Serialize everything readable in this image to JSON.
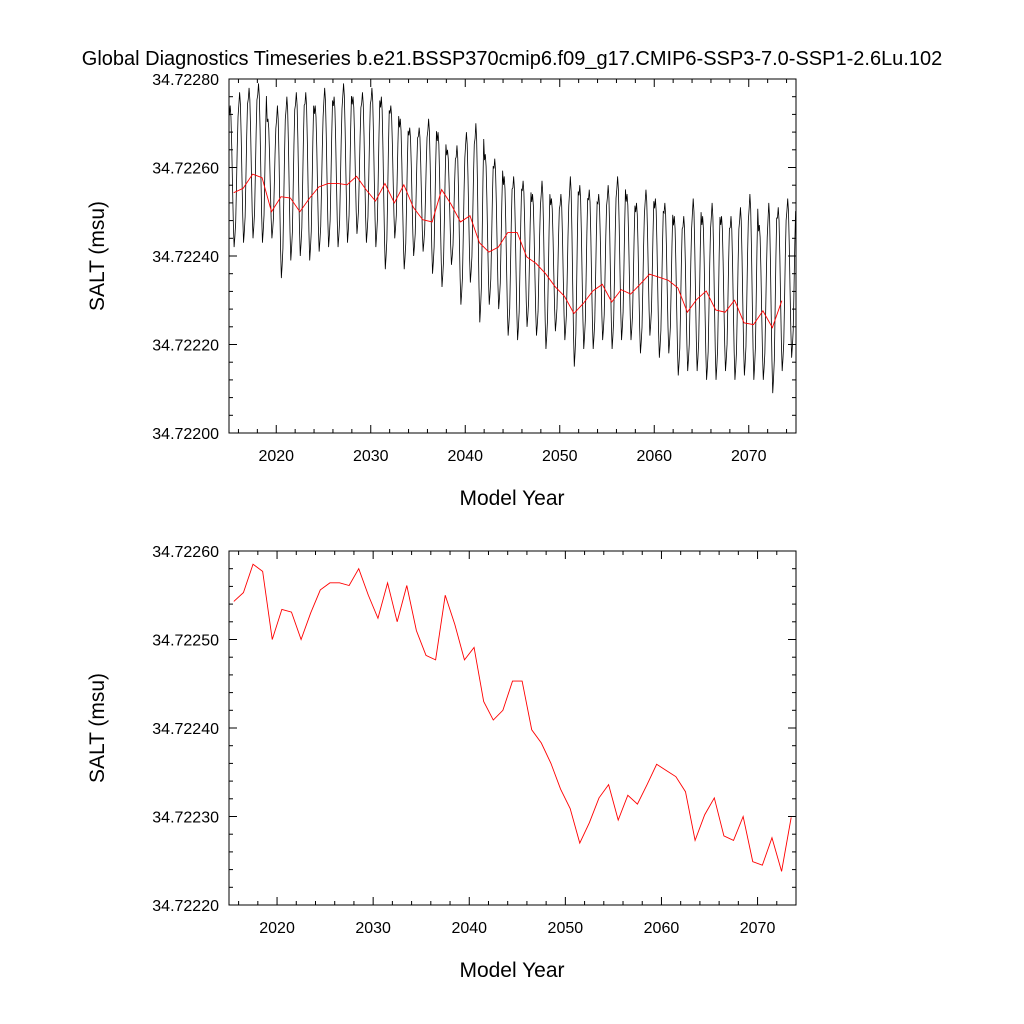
{
  "title": "Global Diagnostics Timeseries b.e21.BSSP370cmip6.f09_g17.CMIP6-SSP3-7.0-SSP1-2.6Lu.102",
  "colors": {
    "monthly": "#000000",
    "annual": "#ff0000",
    "axes": "#000000"
  },
  "chart_data": [
    {
      "type": "line",
      "title": "Global Diagnostics Timeseries b.e21.BSSP370cmip6.f09_g17.CMIP6-SSP3-7.0-SSP1-2.6Lu.102",
      "xlabel": "Model Year",
      "ylabel": "SALT (msu)",
      "xlim": [
        2015,
        2075
      ],
      "ylim": [
        34.722,
        34.7228
      ],
      "x_ticks": [
        2020,
        2030,
        2040,
        2050,
        2060,
        2070
      ],
      "x_tick_labels": [
        "2020",
        "2030",
        "2040",
        "2050",
        "2060",
        "2070"
      ],
      "y_ticks": [
        34.722,
        34.7222,
        34.7224,
        34.7226,
        34.7228
      ],
      "y_tick_labels": [
        "34.72200",
        "34.72220",
        "34.72240",
        "34.72260",
        "34.72280"
      ],
      "grid": false,
      "series": [
        {
          "color": "#000000",
          "x_start": 2015.04,
          "x_step": 0.08333,
          "annual_peak": [
            34.72274,
            34.72277,
            34.72278,
            34.72279,
            34.72271,
            34.72274,
            34.72276,
            34.72277,
            34.72277,
            34.72274,
            34.72278,
            34.72276,
            34.72279,
            34.72276,
            34.72277,
            34.72278,
            34.72276,
            34.72274,
            34.72271,
            34.72269,
            34.72269,
            34.72271,
            34.72268,
            34.72264,
            34.72265,
            34.72268,
            34.7227,
            34.72263,
            34.72262,
            34.72258,
            34.72258,
            34.72257,
            34.72254,
            34.72257,
            34.72253,
            34.72254,
            34.72258,
            34.72256,
            34.72255,
            34.72254,
            34.72256,
            34.72258,
            34.72254,
            34.72252,
            34.72255,
            34.72253,
            34.72252,
            34.72249,
            34.72249,
            34.72253,
            34.72249,
            34.72252,
            34.72249,
            34.72249,
            34.72251,
            34.72254,
            34.72247,
            34.72252,
            34.72251,
            34.72253
          ],
          "annual_trough": [
            34.72242,
            34.72243,
            34.72244,
            34.72243,
            34.72244,
            34.72235,
            34.72239,
            34.7224,
            34.72239,
            34.72241,
            34.72242,
            34.72242,
            34.72243,
            34.72245,
            34.72243,
            34.72242,
            34.72237,
            34.72244,
            34.72237,
            34.7224,
            34.72241,
            34.72236,
            34.72233,
            34.72238,
            34.72229,
            34.72234,
            34.72225,
            34.72229,
            34.72228,
            34.72222,
            34.72221,
            34.72224,
            34.72222,
            34.72219,
            34.72223,
            34.72221,
            34.72215,
            34.72219,
            34.72219,
            34.72221,
            34.72219,
            34.72221,
            34.72221,
            34.72218,
            34.72222,
            34.72217,
            34.72218,
            34.72213,
            34.72214,
            34.72214,
            34.72212,
            34.72212,
            34.72214,
            34.72212,
            34.72213,
            34.72212,
            34.72212,
            34.72209,
            34.72214,
            34.72217
          ]
        },
        {
          "color": "#ff0000",
          "x": [
            2015.5,
            2016.5,
            2017.5,
            2018.5,
            2019.5,
            2020.5,
            2021.5,
            2022.5,
            2023.5,
            2024.5,
            2025.5,
            2026.5,
            2027.5,
            2028.5,
            2029.5,
            2030.5,
            2031.5,
            2032.5,
            2033.5,
            2034.5,
            2035.5,
            2036.5,
            2037.5,
            2038.5,
            2039.5,
            2040.5,
            2041.5,
            2042.5,
            2043.5,
            2044.5,
            2045.5,
            2046.5,
            2047.5,
            2048.5,
            2049.5,
            2050.5,
            2051.5,
            2052.5,
            2053.5,
            2054.5,
            2055.5,
            2056.5,
            2057.5,
            2058.5,
            2059.5,
            2060.5,
            2061.5,
            2062.5,
            2063.5,
            2064.5,
            2065.5,
            2066.5,
            2067.5,
            2068.5,
            2069.5,
            2070.5,
            2071.5,
            2072.5,
            2073.5
          ],
          "values": [
            34.722543,
            34.722553,
            34.722585,
            34.722577,
            34.7225,
            34.722534,
            34.722531,
            34.7225,
            34.72253,
            34.722556,
            34.722564,
            34.722564,
            34.722561,
            34.72258,
            34.72255,
            34.722524,
            34.722564,
            34.72252,
            34.722561,
            34.72251,
            34.722482,
            34.722477,
            34.72255,
            34.722517,
            34.722477,
            34.722491,
            34.72243,
            34.722409,
            34.72242,
            34.722453,
            34.722453,
            34.722398,
            34.722383,
            34.72236,
            34.722331,
            34.722309,
            34.72227,
            34.722293,
            34.722321,
            34.722336,
            34.722296,
            34.722324,
            34.722314,
            34.722336,
            34.722359,
            34.722352,
            34.722345,
            34.722328,
            34.722273,
            34.722302,
            34.722321,
            34.722278,
            34.722273,
            34.7223,
            34.722249,
            34.722245,
            34.722276,
            34.722238,
            34.722299
          ]
        }
      ]
    },
    {
      "type": "line",
      "xlabel": "Model Year",
      "ylabel": "SALT (msu)",
      "xlim": [
        2015,
        2074
      ],
      "ylim": [
        34.7222,
        34.7226
      ],
      "x_ticks": [
        2020,
        2030,
        2040,
        2050,
        2060,
        2070
      ],
      "x_tick_labels": [
        "2020",
        "2030",
        "2040",
        "2050",
        "2060",
        "2070"
      ],
      "y_ticks": [
        34.7222,
        34.7223,
        34.7224,
        34.7225,
        34.7226
      ],
      "y_tick_labels": [
        "34.72220",
        "34.72230",
        "34.72240",
        "34.72250",
        "34.72260"
      ],
      "grid": false,
      "series": [
        {
          "color": "#ff0000",
          "x": [
            2015.5,
            2016.5,
            2017.5,
            2018.5,
            2019.5,
            2020.5,
            2021.5,
            2022.5,
            2023.5,
            2024.5,
            2025.5,
            2026.5,
            2027.5,
            2028.5,
            2029.5,
            2030.5,
            2031.5,
            2032.5,
            2033.5,
            2034.5,
            2035.5,
            2036.5,
            2037.5,
            2038.5,
            2039.5,
            2040.5,
            2041.5,
            2042.5,
            2043.5,
            2044.5,
            2045.5,
            2046.5,
            2047.5,
            2048.5,
            2049.5,
            2050.5,
            2051.5,
            2052.5,
            2053.5,
            2054.5,
            2055.5,
            2056.5,
            2057.5,
            2058.5,
            2059.5,
            2060.5,
            2061.5,
            2062.5,
            2063.5,
            2064.5,
            2065.5,
            2066.5,
            2067.5,
            2068.5,
            2069.5,
            2070.5,
            2071.5,
            2072.5,
            2073.5
          ],
          "values": [
            34.722543,
            34.722553,
            34.722585,
            34.722577,
            34.7225,
            34.722534,
            34.722531,
            34.7225,
            34.72253,
            34.722556,
            34.722564,
            34.722564,
            34.722561,
            34.72258,
            34.72255,
            34.722524,
            34.722564,
            34.72252,
            34.722561,
            34.72251,
            34.722482,
            34.722477,
            34.72255,
            34.722517,
            34.722477,
            34.722491,
            34.72243,
            34.722409,
            34.72242,
            34.722453,
            34.722453,
            34.722398,
            34.722383,
            34.72236,
            34.722331,
            34.722309,
            34.72227,
            34.722293,
            34.722321,
            34.722336,
            34.722296,
            34.722324,
            34.722314,
            34.722336,
            34.722359,
            34.722352,
            34.722345,
            34.722328,
            34.722273,
            34.722302,
            34.722321,
            34.722278,
            34.722273,
            34.7223,
            34.722249,
            34.722245,
            34.722276,
            34.722238,
            34.722299
          ]
        }
      ]
    }
  ]
}
